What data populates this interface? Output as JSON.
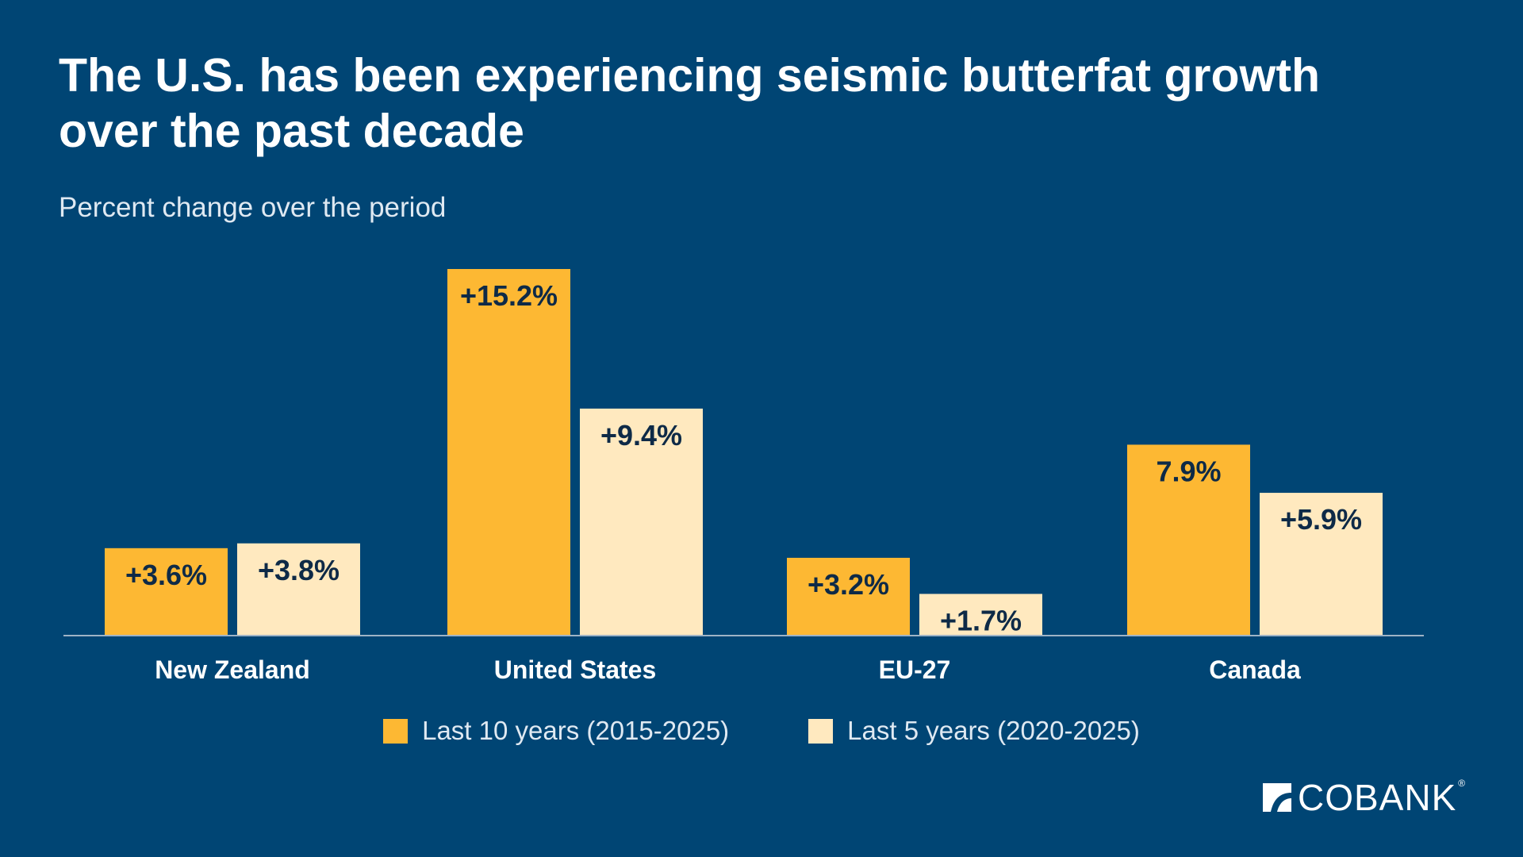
{
  "chart_data": {
    "type": "bar",
    "title": "The U.S. has been experiencing seismic butterfat growth over the past decade",
    "subtitle": "Percent change over the period",
    "categories": [
      "New Zealand",
      "United States",
      "EU-27",
      "Canada"
    ],
    "series": [
      {
        "name": "Last 10 years (2015-2025)",
        "color": "#FDB833",
        "values": [
          3.6,
          15.2,
          3.2,
          7.9
        ],
        "labels": [
          "+3.6%",
          "+15.2%",
          "+3.2%",
          "7.9%"
        ]
      },
      {
        "name": "Last 5 years (2020-2025)",
        "color": "#FFE9BF",
        "values": [
          3.8,
          9.4,
          1.7,
          5.9
        ],
        "labels": [
          "+3.8%",
          "+9.4%",
          "+1.7%",
          "+5.9%"
        ]
      }
    ],
    "ylim": [
      0,
      15.2
    ],
    "grid": false,
    "legend_position": "bottom-center",
    "baseline_color": "#9fb3c6",
    "label_color": "#0e2a47"
  },
  "logo": {
    "text": "COBANK",
    "reg": "®"
  }
}
